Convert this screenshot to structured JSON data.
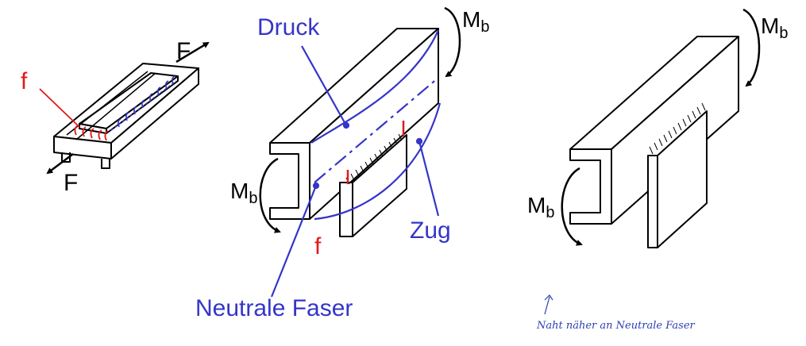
{
  "colors": {
    "ink": "#000000",
    "annotation_blue": "#3535c8",
    "annotation_red": "#e01a1a",
    "handwriting_blue": "#2e3fb0"
  },
  "figure1": {
    "force_top": "F",
    "force_bottom": "F",
    "label_f": "f"
  },
  "figure2": {
    "label_druck": "Druck",
    "label_moment_top_main": "M",
    "label_moment_top_sub": "b",
    "label_moment_left_main": "M",
    "label_moment_left_sub": "b",
    "label_zug": "Zug",
    "label_f": "f",
    "label_neutral": "Neutrale Faser"
  },
  "figure3": {
    "label_moment_top_main": "M",
    "label_moment_top_sub": "b",
    "label_moment_left_main": "M",
    "label_moment_left_sub": "b",
    "handwritten_note": "Naht näher an Neutrale Faser"
  }
}
